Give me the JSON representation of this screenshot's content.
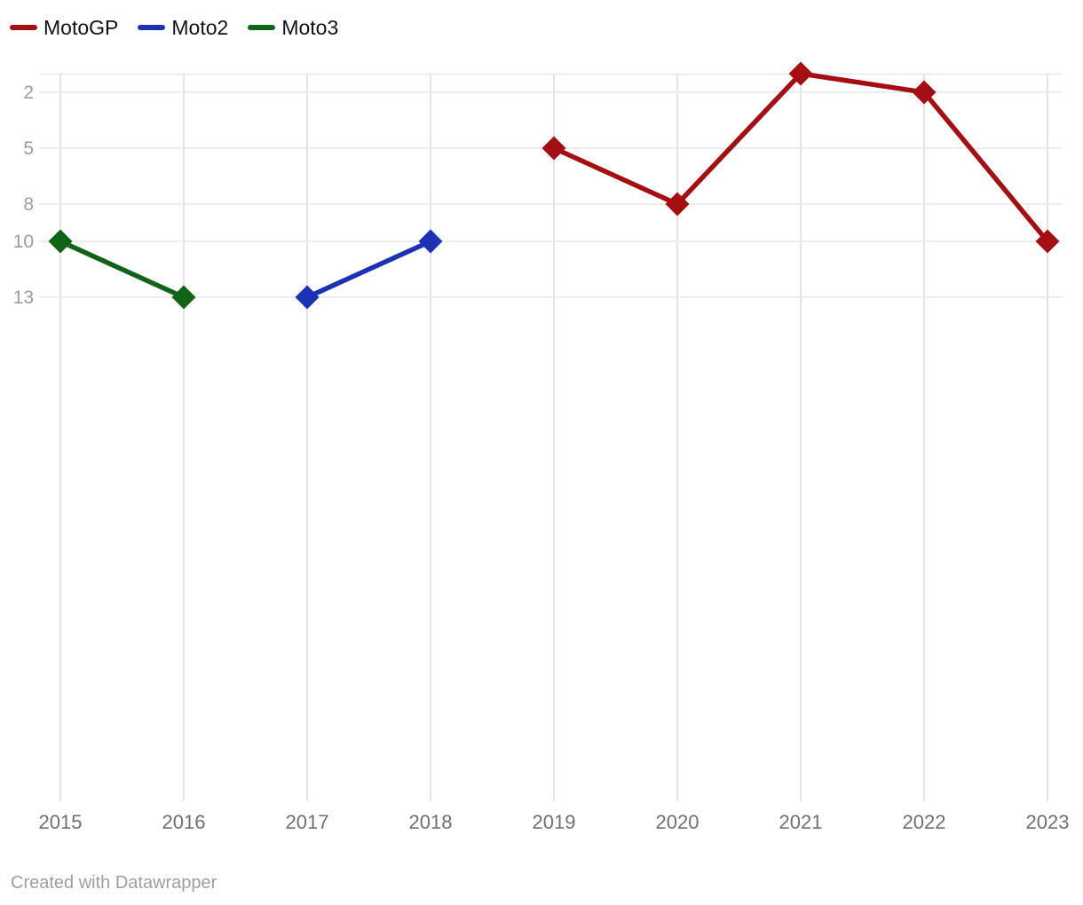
{
  "chart": {
    "footer": "Created with Datawrapper"
  },
  "chart_data": {
    "type": "line",
    "title": "",
    "xlabel": "",
    "ylabel": "",
    "x_ticks": [
      2015,
      2016,
      2017,
      2018,
      2019,
      2020,
      2021,
      2022,
      2023
    ],
    "y_ticks": [
      2,
      5,
      8,
      10,
      13
    ],
    "y_axis_inverted": true,
    "y_top_value": 1,
    "marker": "diamond",
    "grid": true,
    "legend_position": "top-left",
    "legend": [
      {
        "label": "MotoGP",
        "color": "#a40f13"
      },
      {
        "label": "Moto2",
        "color": "#1c32b2"
      },
      {
        "label": "Moto3",
        "color": "#106317"
      }
    ],
    "series": [
      {
        "name": "Moto3",
        "color": "#106317",
        "points": [
          [
            2015,
            10
          ],
          [
            2016,
            13
          ]
        ]
      },
      {
        "name": "Moto2",
        "color": "#1c32b2",
        "points": [
          [
            2017,
            13
          ],
          [
            2018,
            10
          ]
        ]
      },
      {
        "name": "MotoGP",
        "color": "#a40f13",
        "points": [
          [
            2019,
            5
          ],
          [
            2020,
            8
          ],
          [
            2021,
            1
          ],
          [
            2022,
            2
          ],
          [
            2023,
            10
          ]
        ]
      }
    ],
    "colors": {
      "grid_vertical": "#e4e4e4",
      "grid_horizontal": "#e7e7e7",
      "y_tick_label": "#9c9c9c",
      "x_tick_label": "#6f6f6f",
      "legend_text": "#121212",
      "footer_text": "#9e9e9e",
      "background": "#ffffff"
    }
  }
}
